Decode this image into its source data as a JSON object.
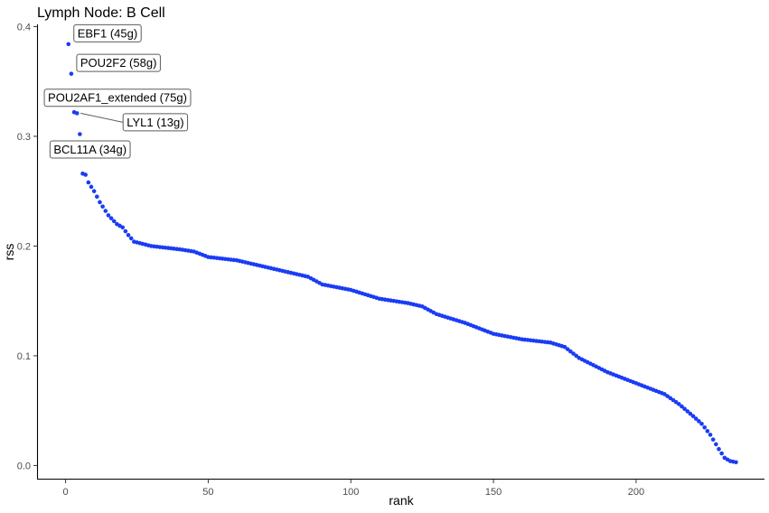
{
  "chart_data": {
    "type": "scatter",
    "title": "Lymph Node: B Cell",
    "xlabel": "rank",
    "ylabel": "rss",
    "xlim": [
      -10,
      245
    ],
    "ylim": [
      -0.012,
      0.402
    ],
    "x_ticks": [
      0,
      50,
      100,
      150,
      200
    ],
    "y_ticks": [
      0.0,
      0.1,
      0.2,
      0.3,
      0.4
    ],
    "x_tick_labels": [
      "0",
      "50",
      "100",
      "150",
      "200"
    ],
    "y_tick_labels": [
      "0.0",
      "0.1",
      "0.2",
      "0.3",
      "0.4"
    ],
    "grid": false,
    "point_color": "#1a3cf5",
    "label_box_color": "#5c5c5c",
    "point_count": 235,
    "anchors": [
      [
        1,
        0.384
      ],
      [
        2,
        0.357
      ],
      [
        3,
        0.322
      ],
      [
        4,
        0.321
      ],
      [
        5,
        0.302
      ],
      [
        6,
        0.266
      ],
      [
        7,
        0.265
      ],
      [
        8,
        0.258
      ],
      [
        10,
        0.25
      ],
      [
        12,
        0.24
      ],
      [
        15,
        0.228
      ],
      [
        18,
        0.22
      ],
      [
        20,
        0.217
      ],
      [
        22,
        0.21
      ],
      [
        24,
        0.204
      ],
      [
        27,
        0.202
      ],
      [
        30,
        0.2
      ],
      [
        40,
        0.197
      ],
      [
        45,
        0.195
      ],
      [
        50,
        0.19
      ],
      [
        60,
        0.187
      ],
      [
        70,
        0.181
      ],
      [
        80,
        0.175
      ],
      [
        85,
        0.172
      ],
      [
        90,
        0.165
      ],
      [
        100,
        0.16
      ],
      [
        110,
        0.152
      ],
      [
        120,
        0.148
      ],
      [
        125,
        0.145
      ],
      [
        130,
        0.138
      ],
      [
        140,
        0.13
      ],
      [
        150,
        0.12
      ],
      [
        160,
        0.115
      ],
      [
        170,
        0.112
      ],
      [
        175,
        0.108
      ],
      [
        180,
        0.098
      ],
      [
        190,
        0.085
      ],
      [
        200,
        0.075
      ],
      [
        210,
        0.065
      ],
      [
        215,
        0.056
      ],
      [
        220,
        0.045
      ],
      [
        223,
        0.038
      ],
      [
        226,
        0.028
      ],
      [
        229,
        0.015
      ],
      [
        231,
        0.007
      ],
      [
        233,
        0.004
      ],
      [
        235,
        0.003
      ]
    ],
    "annotations": [
      {
        "label": "EBF1 (45g)",
        "x": 1,
        "y": 0.384
      },
      {
        "label": "POU2F2 (58g)",
        "x": 2,
        "y": 0.357
      },
      {
        "label": "POU2AF1_extended (75g)",
        "x": 3,
        "y": 0.322
      },
      {
        "label": "LYL1 (13g)",
        "x": 4,
        "y": 0.321
      },
      {
        "label": "BCL11A (34g)",
        "x": 5,
        "y": 0.302
      }
    ]
  }
}
